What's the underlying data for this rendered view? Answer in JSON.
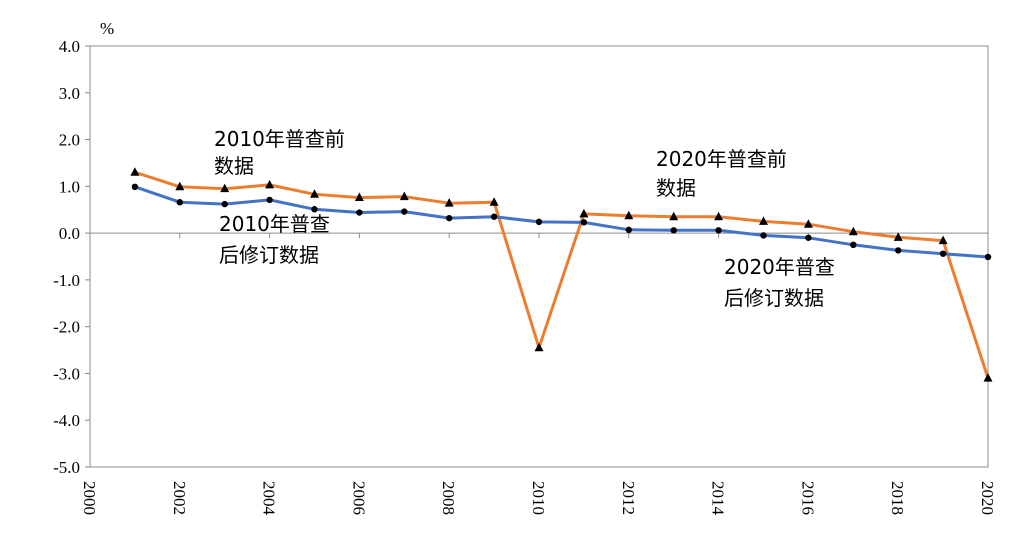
{
  "chart_data": {
    "type": "line",
    "unit_label": "%",
    "ylim": [
      -5.0,
      4.0
    ],
    "y_ticks": [
      "4.0",
      "3.0",
      "2.0",
      "1.0",
      "0.0",
      "-1.0",
      "-2.0",
      "-3.0",
      "-4.0",
      "-5.0"
    ],
    "xlim": [
      2000,
      2020
    ],
    "x_ticks": [
      "2000",
      "2002",
      "2004",
      "2006",
      "2008",
      "2010",
      "2012",
      "2014",
      "2016",
      "2018",
      "2020"
    ],
    "grid": {
      "horizontal": false,
      "vertical": false
    },
    "series": [
      {
        "color": "#ED7D31",
        "marker": "triangle",
        "x": [
          2001,
          2002,
          2003,
          2004,
          2005,
          2006,
          2007,
          2008,
          2009,
          2010,
          2011,
          2012,
          2013,
          2014,
          2015,
          2016,
          2017,
          2018,
          2019,
          2020
        ],
        "values": [
          1.3,
          0.99,
          0.95,
          1.03,
          0.83,
          0.76,
          0.78,
          0.64,
          0.66,
          -2.45,
          0.41,
          0.37,
          0.35,
          0.35,
          0.25,
          0.19,
          0.03,
          -0.09,
          -0.16,
          -3.1
        ]
      },
      {
        "color": "#4472C4",
        "marker": "circle",
        "x": [
          2001,
          2002,
          2003,
          2004,
          2005,
          2006,
          2007,
          2008,
          2009,
          2010,
          2011,
          2012,
          2013,
          2014,
          2015,
          2016,
          2017,
          2018,
          2019,
          2020
        ],
        "values": [
          0.99,
          0.66,
          0.62,
          0.71,
          0.51,
          0.44,
          0.46,
          0.32,
          0.35,
          0.24,
          0.23,
          0.07,
          0.06,
          0.06,
          -0.05,
          -0.1,
          -0.25,
          -0.37,
          -0.44,
          -0.51
        ]
      }
    ],
    "annotations": [
      {
        "lines": [
          "2010年普查前",
          "数据"
        ]
      },
      {
        "lines": [
          "2010年普查",
          "后修订数据"
        ]
      },
      {
        "lines": [
          "2020年普查前",
          "数据"
        ]
      },
      {
        "lines": [
          "2020年普查",
          "后修订数据"
        ]
      }
    ]
  }
}
